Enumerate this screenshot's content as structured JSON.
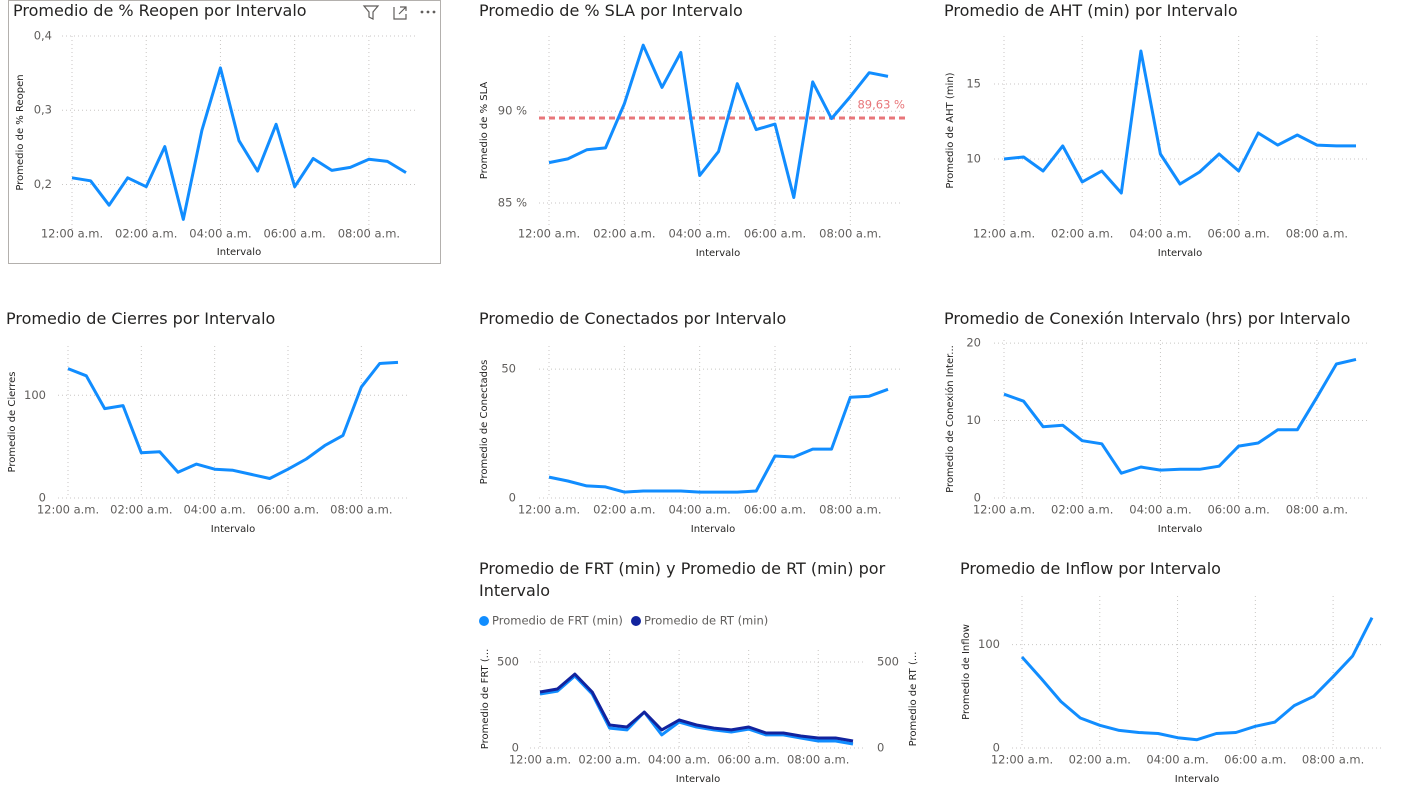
{
  "chart_data": [
    {
      "type": "line",
      "title": "Promedio de % Reopen por Intervalo",
      "x_label": "Intervalo",
      "y_label": "Promedio de % Reopen",
      "categories": [
        "12:00 a.m.",
        null,
        null,
        null,
        "02:00 a.m.",
        null,
        null,
        null,
        "04:00 a.m.",
        null,
        null,
        null,
        "06:00 a.m.",
        null,
        null,
        null,
        "08:00 a.m.",
        null,
        null
      ],
      "values": [
        0.209,
        0.205,
        0.172,
        0.209,
        0.197,
        0.251,
        0.153,
        0.273,
        0.357,
        0.259,
        0.218,
        0.281,
        0.197,
        0.235,
        0.219,
        0.223,
        0.234,
        0.231,
        0.216
      ],
      "color": "#118dff",
      "ylim": [
        0.14,
        0.4
      ],
      "yticks": [
        {
          "value": 0.2,
          "label": "0,2"
        },
        {
          "value": 0.3,
          "label": "0,3"
        },
        {
          "value": 0.4,
          "label": "0,4"
        }
      ],
      "grid": true
    },
    {
      "type": "line",
      "title": "Promedio de % SLA por Intervalo",
      "x_label": "Intervalo",
      "y_label": "Promedio de % SLA",
      "categories": [
        "12:00 a.m.",
        null,
        null,
        null,
        "02:00 a.m.",
        null,
        null,
        null,
        "04:00 a.m.",
        null,
        null,
        null,
        "06:00 a.m.",
        null,
        null,
        null,
        "08:00 a.m.",
        null,
        null
      ],
      "values": [
        87.2,
        87.4,
        87.9,
        88.0,
        90.4,
        93.6,
        91.3,
        93.2,
        86.5,
        87.8,
        91.5,
        89.0,
        89.3,
        85.3,
        91.6,
        89.6,
        90.8,
        92.1,
        91.9
      ],
      "color": "#118dff",
      "ylim": [
        83.8,
        94.1
      ],
      "yticks": [
        {
          "value": 85,
          "label": "85 %"
        },
        {
          "value": 90,
          "label": "90 %"
        }
      ],
      "grid": true,
      "reference_line": {
        "value": 89.63,
        "label": "89,63 %",
        "color": "#e8767a"
      }
    },
    {
      "type": "line",
      "title": "Promedio de AHT (min) por Intervalo",
      "x_label": "Intervalo",
      "y_label": "Promedio de AHT (min)",
      "categories": [
        "12:00 a.m.",
        null,
        null,
        null,
        "02:00 a.m.",
        null,
        null,
        null,
        "04:00 a.m.",
        null,
        null,
        null,
        "06:00 a.m.",
        null,
        null,
        null,
        "08:00 a.m.",
        null,
        null
      ],
      "values": [
        10.0,
        10.13,
        9.2,
        10.87,
        8.47,
        9.2,
        7.73,
        17.2,
        10.33,
        8.33,
        9.13,
        10.33,
        9.2,
        11.73,
        10.93,
        11.6,
        10.93,
        10.87,
        10.87
      ],
      "color": "#118dff",
      "ylim": [
        5.6,
        18.2
      ],
      "yticks": [
        10,
        15
      ],
      "grid": true
    },
    {
      "type": "line",
      "title": "Promedio de Cierres por Intervalo",
      "x_label": "Intervalo",
      "y_label": "Promedio de Cierres",
      "categories": [
        "12:00 a.m.",
        null,
        null,
        null,
        "02:00 a.m.",
        null,
        null,
        null,
        "04:00 a.m.",
        null,
        null,
        null,
        "06:00 a.m.",
        null,
        null,
        null,
        "08:00 a.m.",
        null,
        null
      ],
      "values": [
        126,
        119,
        87,
        90,
        44,
        45,
        25,
        33,
        28,
        27,
        23,
        19,
        28,
        38,
        51,
        61,
        108,
        131,
        132
      ],
      "color": "#118dff",
      "ylim": [
        0,
        148
      ],
      "yticks": [
        0,
        100
      ],
      "grid": true
    },
    {
      "type": "line",
      "title": "Promedio de Conectados por Intervalo",
      "x_label": "Intervalo",
      "y_label": "Promedio de Conectados",
      "categories": [
        "12:00 a.m.",
        null,
        null,
        null,
        "02:00 a.m.",
        null,
        null,
        null,
        "04:00 a.m.",
        null,
        null,
        null,
        "06:00 a.m.",
        null,
        null,
        null,
        "08:00 a.m.",
        null,
        null
      ],
      "values": [
        8.1,
        6.6,
        4.7,
        4.3,
        2.3,
        2.7,
        2.7,
        2.7,
        2.3,
        2.3,
        2.3,
        2.7,
        16.3,
        15.9,
        19,
        19,
        39.1,
        39.5,
        42.2
      ],
      "color": "#118dff",
      "ylim": [
        0,
        59
      ],
      "yticks": [
        0,
        50
      ],
      "grid": true
    },
    {
      "type": "line",
      "title": "Promedio de Conexión Intervalo (hrs) por Intervalo",
      "x_label": "Intervalo",
      "y_label": "Promedio de Conexión Inter...",
      "categories": [
        "12:00 a.m.",
        null,
        null,
        null,
        "02:00 a.m.",
        null,
        null,
        null,
        "04:00 a.m.",
        null,
        null,
        null,
        "06:00 a.m.",
        null,
        null,
        null,
        "08:00 a.m.",
        null,
        null
      ],
      "values": [
        13.4,
        12.5,
        9.2,
        9.4,
        7.4,
        7.0,
        3.2,
        4.0,
        3.6,
        3.7,
        3.7,
        4.1,
        6.7,
        7.1,
        8.8,
        8.8,
        13.0,
        17.3,
        17.9
      ],
      "color": "#118dff",
      "ylim": [
        0,
        20.4
      ],
      "yticks": [
        0,
        10,
        20
      ],
      "grid": true
    },
    {
      "type": "line",
      "title": "Promedio de FRT (min) y Promedio de RT (min) por Intervalo",
      "x_label": "Intervalo",
      "y_label": "Promedio de FRT (...",
      "y2_label": "Promedio de RT (...",
      "categories": [
        "12:00 a.m.",
        null,
        null,
        null,
        "02:00 a.m.",
        null,
        null,
        null,
        "04:00 a.m.",
        null,
        null,
        null,
        "06:00 a.m.",
        null,
        null,
        null,
        "08:00 a.m.",
        null,
        null
      ],
      "series": [
        {
          "name": "Promedio de FRT (min)",
          "color": "#118dff",
          "values": [
            314,
            331,
            419,
            314,
            116,
            105,
            209,
            76,
            151,
            122,
            105,
            93,
            110,
            76,
            76,
            58,
            41,
            41,
            23
          ]
        },
        {
          "name": "Promedio de RT (min)",
          "color": "#12239e",
          "axis": "y2",
          "values": [
            326,
            343,
            430,
            326,
            134,
            122,
            209,
            105,
            163,
            134,
            116,
            105,
            122,
            87,
            87,
            70,
            58,
            58,
            41
          ]
        }
      ],
      "ylim": [
        0,
        570
      ],
      "yticks": [
        0,
        500
      ],
      "y2lim": [
        0,
        570
      ],
      "y2ticks": [
        0,
        500
      ],
      "grid": true,
      "legend": "top"
    },
    {
      "type": "line",
      "title": "Promedio de Inflow por Intervalo",
      "x_label": "Intervalo",
      "y_label": "Promedio de Inflow",
      "categories": [
        "12:00 a.m.",
        null,
        null,
        null,
        "02:00 a.m.",
        null,
        null,
        null,
        "04:00 a.m.",
        null,
        null,
        null,
        "06:00 a.m.",
        null,
        null,
        null,
        "08:00 a.m.",
        null,
        null
      ],
      "values": [
        88,
        67,
        45,
        29,
        22,
        17,
        15,
        14,
        10,
        8,
        14,
        15,
        21,
        25,
        41,
        50,
        69,
        89,
        126
      ],
      "color": "#118dff",
      "ylim": [
        0,
        147
      ],
      "yticks": [
        0,
        100
      ],
      "grid": true
    }
  ]
}
